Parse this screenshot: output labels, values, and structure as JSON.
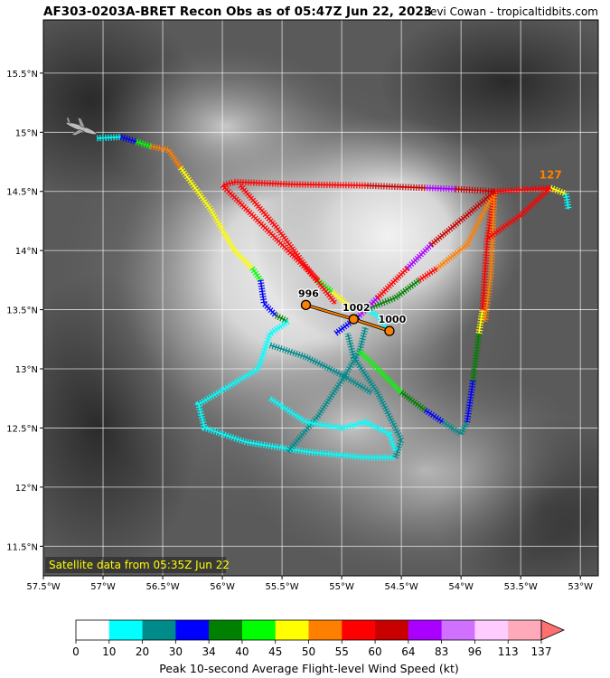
{
  "header": {
    "title": "AF303-0203A-BRET Recon Obs as of 05:47Z Jun 22, 2023",
    "credit": "Levi Cowan - tropicaltidbits.com"
  },
  "map": {
    "satellite_note": "Satellite data from 05:35Z Jun 22",
    "lon_ticks": [
      "57.5°W",
      "57°W",
      "56.5°W",
      "56°W",
      "55.5°W",
      "55°W",
      "54.5°W",
      "54°W",
      "53.5°W",
      "53°W"
    ],
    "lat_ticks": [
      "15.5°N",
      "15°N",
      "14.5°N",
      "14°N",
      "13.5°N",
      "13°N",
      "12.5°N",
      "12°N",
      "11.5°N"
    ],
    "lon_values": [
      -57.5,
      -57.0,
      -56.5,
      -56.0,
      -55.5,
      -55.0,
      -54.5,
      -54.0,
      -53.5,
      -53.0
    ],
    "lat_values": [
      15.5,
      15.0,
      14.5,
      14.0,
      13.5,
      13.0,
      12.5,
      12.0,
      11.5
    ],
    "lon_range": [
      -57.5,
      -52.85
    ],
    "lat_range": [
      11.25,
      15.95
    ],
    "grid": true
  },
  "center_fixes": [
    {
      "label": "996",
      "lon": -55.3,
      "lat": 13.54
    },
    {
      "label": "1002",
      "lon": -54.9,
      "lat": 13.42
    },
    {
      "label": "1000",
      "lon": -54.6,
      "lat": 13.32
    }
  ],
  "peak_label": {
    "text": "127",
    "lon": -53.25,
    "lat": 14.61,
    "color": "#ff7f00"
  },
  "colorbar": {
    "label": "Peak 10-second Average Flight-level Wind Speed (kt)",
    "ticks": [
      "0",
      "10",
      "20",
      "30",
      "34",
      "40",
      "45",
      "50",
      "55",
      "60",
      "64",
      "83",
      "96",
      "113",
      "137"
    ],
    "colors": [
      "#ffffff",
      "#00ffff",
      "#008b8b",
      "#0000ff",
      "#008000",
      "#00ff00",
      "#ffff00",
      "#ff7f00",
      "#ff0000",
      "#c80000",
      "#aa00ff",
      "#d070ff",
      "#ffccff",
      "#ffaabb"
    ],
    "extend_color": "#ff7070"
  },
  "flight_segments": [
    {
      "color": "#00ffff",
      "points": [
        [
          -57.05,
          14.95
        ],
        [
          -56.85,
          14.96
        ]
      ]
    },
    {
      "color": "#0000ff",
      "points": [
        [
          -56.85,
          14.96
        ],
        [
          -56.72,
          14.92
        ]
      ]
    },
    {
      "color": "#00ff00",
      "points": [
        [
          -56.72,
          14.92
        ],
        [
          -56.6,
          14.88
        ]
      ]
    },
    {
      "color": "#ff7f00",
      "points": [
        [
          -56.6,
          14.88
        ],
        [
          -56.45,
          14.85
        ],
        [
          -56.35,
          14.7
        ]
      ]
    },
    {
      "color": "#ffff00",
      "points": [
        [
          -56.35,
          14.7
        ],
        [
          -56.1,
          14.35
        ],
        [
          -55.9,
          14.0
        ],
        [
          -55.75,
          13.85
        ]
      ]
    },
    {
      "color": "#00ff00",
      "points": [
        [
          -55.75,
          13.85
        ],
        [
          -55.68,
          13.75
        ]
      ]
    },
    {
      "color": "#0000ff",
      "points": [
        [
          -55.68,
          13.75
        ],
        [
          -55.65,
          13.55
        ],
        [
          -55.55,
          13.45
        ]
      ]
    },
    {
      "color": "#008000",
      "points": [
        [
          -55.55,
          13.45
        ],
        [
          -55.45,
          13.4
        ]
      ]
    },
    {
      "color": "#00ffff",
      "points": [
        [
          -55.45,
          13.4
        ],
        [
          -55.6,
          13.3
        ],
        [
          -55.7,
          13.0
        ],
        [
          -55.95,
          12.85
        ],
        [
          -56.2,
          12.7
        ],
        [
          -56.15,
          12.5
        ],
        [
          -55.8,
          12.38
        ],
        [
          -55.3,
          12.3
        ],
        [
          -54.8,
          12.25
        ],
        [
          -54.55,
          12.25
        ]
      ]
    },
    {
      "color": "#008b8b",
      "points": [
        [
          -54.55,
          12.25
        ],
        [
          -54.5,
          12.4
        ],
        [
          -54.7,
          12.8
        ],
        [
          -54.9,
          13.1
        ],
        [
          -54.95,
          13.3
        ]
      ]
    },
    {
      "color": "#008b8b",
      "points": [
        [
          -55.45,
          12.3
        ],
        [
          -55.2,
          12.6
        ],
        [
          -55.0,
          12.9
        ],
        [
          -54.85,
          13.15
        ],
        [
          -54.8,
          13.35
        ]
      ]
    },
    {
      "color": "#00ffff",
      "points": [
        [
          -55.6,
          12.75
        ],
        [
          -55.3,
          12.55
        ],
        [
          -55.0,
          12.5
        ],
        [
          -54.8,
          12.55
        ],
        [
          -54.6,
          12.45
        ],
        [
          -54.55,
          12.3
        ]
      ]
    },
    {
      "color": "#008b8b",
      "points": [
        [
          -55.6,
          13.2
        ],
        [
          -55.3,
          13.1
        ],
        [
          -55.0,
          12.95
        ],
        [
          -54.75,
          12.8
        ]
      ]
    },
    {
      "color": "#00ff00",
      "points": [
        [
          -54.85,
          13.15
        ],
        [
          -54.65,
          12.95
        ],
        [
          -54.5,
          12.8
        ]
      ]
    },
    {
      "color": "#008000",
      "points": [
        [
          -54.5,
          12.8
        ],
        [
          -54.3,
          12.65
        ]
      ]
    },
    {
      "color": "#0000ff",
      "points": [
        [
          -54.3,
          12.65
        ],
        [
          -54.15,
          12.55
        ]
      ]
    },
    {
      "color": "#008b8b",
      "points": [
        [
          -54.15,
          12.55
        ],
        [
          -54.0,
          12.45
        ],
        [
          -53.95,
          12.55
        ]
      ]
    },
    {
      "color": "#0000ff",
      "points": [
        [
          -53.95,
          12.55
        ],
        [
          -53.9,
          12.9
        ]
      ]
    },
    {
      "color": "#008000",
      "points": [
        [
          -53.9,
          12.9
        ],
        [
          -53.85,
          13.3
        ]
      ]
    },
    {
      "color": "#ffff00",
      "points": [
        [
          -53.85,
          13.3
        ],
        [
          -53.82,
          13.5
        ]
      ]
    },
    {
      "color": "#ff0000",
      "points": [
        [
          -53.82,
          13.5
        ],
        [
          -53.78,
          14.1
        ],
        [
          -53.72,
          14.5
        ]
      ]
    },
    {
      "color": "#ff7f00",
      "points": [
        [
          -53.72,
          14.5
        ],
        [
          -53.75,
          13.8
        ],
        [
          -53.8,
          13.4
        ]
      ]
    },
    {
      "color": "#00ffff",
      "points": [
        [
          -54.6,
          13.3
        ],
        [
          -54.7,
          13.45
        ],
        [
          -54.8,
          13.5
        ]
      ]
    },
    {
      "color": "#008000",
      "points": [
        [
          -54.8,
          13.5
        ],
        [
          -54.55,
          13.6
        ],
        [
          -54.35,
          13.75
        ]
      ]
    },
    {
      "color": "#ff0000",
      "points": [
        [
          -54.35,
          13.75
        ],
        [
          -54.2,
          13.85
        ]
      ]
    },
    {
      "color": "#ff7f00",
      "points": [
        [
          -54.2,
          13.85
        ],
        [
          -53.95,
          14.05
        ],
        [
          -53.72,
          14.5
        ]
      ]
    },
    {
      "color": "#0000ff",
      "points": [
        [
          -55.05,
          13.3
        ],
        [
          -54.85,
          13.45
        ]
      ]
    },
    {
      "color": "#aa00ff",
      "points": [
        [
          -54.85,
          13.45
        ],
        [
          -54.7,
          13.6
        ]
      ]
    },
    {
      "color": "#ff0000",
      "points": [
        [
          -54.7,
          13.6
        ],
        [
          -54.45,
          13.85
        ]
      ]
    },
    {
      "color": "#aa00ff",
      "points": [
        [
          -54.45,
          13.85
        ],
        [
          -54.25,
          14.05
        ]
      ]
    },
    {
      "color": "#c80000",
      "points": [
        [
          -54.25,
          14.05
        ],
        [
          -53.95,
          14.3
        ],
        [
          -53.72,
          14.5
        ]
      ]
    },
    {
      "color": "#ff0000",
      "points": [
        [
          -53.72,
          14.5
        ],
        [
          -53.4,
          14.52
        ],
        [
          -53.25,
          14.53
        ]
      ]
    },
    {
      "color": "#ffff00",
      "points": [
        [
          -53.25,
          14.53
        ],
        [
          -53.12,
          14.48
        ]
      ]
    },
    {
      "color": "#00ffff",
      "points": [
        [
          -53.12,
          14.48
        ],
        [
          -53.1,
          14.35
        ]
      ]
    },
    {
      "color": "#ff0000",
      "points": [
        [
          -53.25,
          14.53
        ],
        [
          -53.5,
          14.3
        ],
        [
          -53.78,
          14.1
        ]
      ]
    },
    {
      "color": "#c80000",
      "points": [
        [
          -53.72,
          14.5
        ],
        [
          -54.05,
          14.52
        ]
      ]
    },
    {
      "color": "#aa00ff",
      "points": [
        [
          -54.05,
          14.52
        ],
        [
          -54.3,
          14.53
        ]
      ]
    },
    {
      "color": "#c80000",
      "points": [
        [
          -54.3,
          14.53
        ],
        [
          -54.8,
          14.55
        ]
      ]
    },
    {
      "color": "#ff0000",
      "points": [
        [
          -54.8,
          14.55
        ],
        [
          -55.4,
          14.56
        ],
        [
          -55.9,
          14.58
        ],
        [
          -56.0,
          14.55
        ]
      ]
    },
    {
      "color": "#ff0000",
      "points": [
        [
          -56.0,
          14.55
        ],
        [
          -55.7,
          14.25
        ],
        [
          -55.4,
          13.95
        ],
        [
          -55.2,
          13.75
        ]
      ]
    },
    {
      "color": "#00ff00",
      "points": [
        [
          -55.2,
          13.75
        ],
        [
          -55.08,
          13.65
        ]
      ]
    },
    {
      "color": "#ffff00",
      "points": [
        [
          -55.08,
          13.65
        ],
        [
          -54.9,
          13.5
        ]
      ]
    },
    {
      "color": "#ff0000",
      "points": [
        [
          -55.85,
          14.55
        ],
        [
          -55.55,
          14.2
        ],
        [
          -55.25,
          13.8
        ],
        [
          -55.05,
          13.55
        ]
      ]
    }
  ]
}
